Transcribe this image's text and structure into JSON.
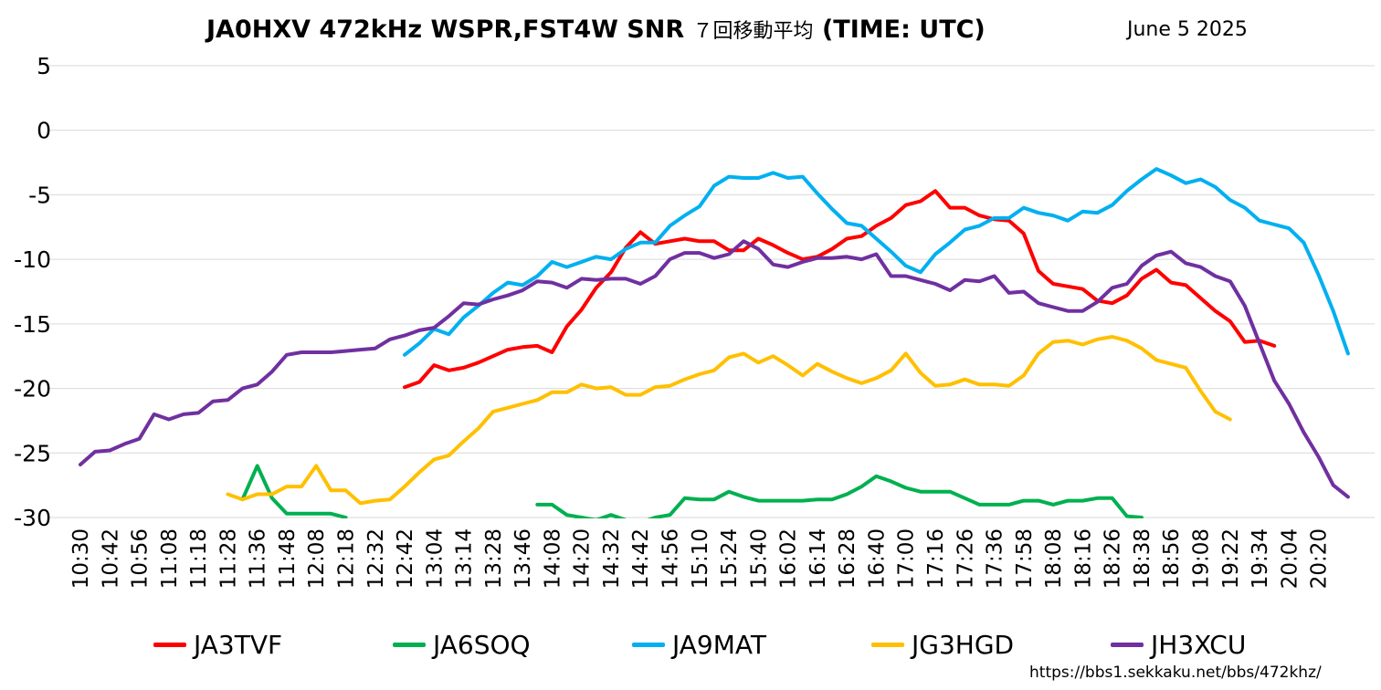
{
  "title_main": "JA0HXV 472kHz WSPR,FST4W SNR ",
  "title_avg": "７回移動平均",
  "title_tail": " (TIME: UTC)",
  "date_label": "June 5 2025",
  "source_url": "https://bbs1.sekkaku.net/bbs/472khz/",
  "chart_data": {
    "type": "line",
    "title": "JA0HXV 472kHz WSPR,FST4W SNR ７回移動平均 (TIME: UTC)",
    "ylim": [
      -30,
      5
    ],
    "yticks": [
      5,
      0,
      -5,
      -10,
      -15,
      -20,
      -25,
      -30
    ],
    "grid": true,
    "legend_position": "bottom",
    "x_tick_labels": [
      "10:30",
      "10:42",
      "10:56",
      "11:08",
      "11:18",
      "11:28",
      "11:36",
      "11:48",
      "12:08",
      "12:18",
      "12:32",
      "12:42",
      "13:04",
      "13:14",
      "13:28",
      "13:46",
      "14:08",
      "14:20",
      "14:32",
      "14:42",
      "14:56",
      "15:10",
      "15:24",
      "15:40",
      "16:02",
      "16:14",
      "16:28",
      "16:40",
      "17:00",
      "17:16",
      "17:26",
      "17:36",
      "17:58",
      "18:08",
      "18:16",
      "18:26",
      "18:38",
      "18:56",
      "19:08",
      "19:22",
      "19:34",
      "20:04",
      "20:20"
    ],
    "series": [
      {
        "name": "JA3TVF",
        "color": "#FF0000",
        "start": 22,
        "values": [
          -19.9,
          -19.5,
          -18.2,
          -18.6,
          -18.4,
          -18,
          -17.5,
          -17,
          -16.8,
          -16.7,
          -17.2,
          -15.2,
          -13.9,
          -12.2,
          -11,
          -9.1,
          -7.9,
          -8.8,
          -8.6,
          -8.4,
          -8.6,
          -8.6,
          -9.3,
          -9.3,
          -8.4,
          -8.9,
          -9.5,
          -10,
          -9.8,
          -9.2,
          -8.4,
          -8.2,
          -7.4,
          -6.8,
          -5.8,
          -5.5,
          -4.7,
          -6,
          -6,
          -6.6,
          -6.9,
          -7,
          -8,
          -10.9,
          -11.9,
          -12.1,
          -12.3,
          -13.2,
          -13.4,
          -12.8,
          -11.5,
          -10.8,
          -11.8,
          -12,
          -13,
          -14,
          -14.8,
          -16.4,
          -16.3,
          -16.7
        ]
      },
      {
        "name": "JA6SOQ",
        "color": "#00B050",
        "start": 11,
        "segments": [
          {
            "start": 11,
            "values": [
              -28.6,
              -26,
              -28.5,
              -29.7,
              -29.7,
              -29.7,
              -29.7,
              -30
            ]
          },
          {
            "start": 31,
            "values": [
              -29,
              -29,
              -29.8,
              -30,
              -30.2,
              -29.8,
              -30.2,
              -30.4,
              -30,
              -29.8,
              -28.5,
              -28.6,
              -28.6,
              -28,
              -28.4,
              -28.7,
              -28.7,
              -28.7,
              -28.7,
              -28.6,
              -28.6,
              -28.2,
              -27.6,
              -26.8,
              -27.2,
              -27.7,
              -28,
              -28,
              -28,
              -28.5,
              -29,
              -29,
              -29,
              -28.7,
              -28.7,
              -29,
              -28.7,
              -28.7,
              -28.5,
              -28.5,
              -29.9,
              -30
            ]
          }
        ]
      },
      {
        "name": "JA9MAT",
        "color": "#00B0F0",
        "start": 22,
        "values": [
          -17.4,
          -16.5,
          -15.4,
          -15.8,
          -14.5,
          -13.6,
          -12.6,
          -11.8,
          -12,
          -11.3,
          -10.2,
          -10.6,
          -10.2,
          -9.8,
          -10,
          -9.2,
          -8.7,
          -8.7,
          -7.4,
          -6.6,
          -5.9,
          -4.3,
          -3.6,
          -3.7,
          -3.7,
          -3.3,
          -3.7,
          -3.6,
          -4.9,
          -6.1,
          -7.2,
          -7.4,
          -8.4,
          -9.4,
          -10.5,
          -11,
          -9.6,
          -8.7,
          -7.7,
          -7.4,
          -6.8,
          -6.8,
          -6,
          -6.4,
          -6.6,
          -7,
          -6.3,
          -6.4,
          -5.8,
          -4.7,
          -3.8,
          -3,
          -3.5,
          -4.1,
          -3.8,
          -4.4,
          -5.4,
          -6,
          -7,
          -7.3,
          -7.6,
          -8.7,
          -11.2,
          -14,
          -17.3
        ]
      },
      {
        "name": "JG3HGD",
        "color": "#FFC000",
        "start": 10,
        "values": [
          -28.2,
          -28.6,
          -28.2,
          -28.2,
          -27.6,
          -27.6,
          -26,
          -27.9,
          -27.9,
          -28.9,
          -28.7,
          -28.6,
          -27.6,
          -26.5,
          -25.5,
          -25.2,
          -24.1,
          -23.1,
          -21.8,
          -21.5,
          -21.2,
          -20.9,
          -20.3,
          -20.3,
          -19.7,
          -20,
          -19.9,
          -20.5,
          -20.5,
          -19.9,
          -19.8,
          -19.3,
          -18.9,
          -18.6,
          -17.6,
          -17.3,
          -18,
          -17.5,
          -18.2,
          -19,
          -18.1,
          -18.7,
          -19.2,
          -19.6,
          -19.2,
          -18.6,
          -17.3,
          -18.8,
          -19.8,
          -19.7,
          -19.3,
          -19.7,
          -19.7,
          -19.8,
          -19,
          -17.3,
          -16.4,
          -16.3,
          -16.6,
          -16.2,
          -16,
          -16.3,
          -16.9,
          -17.8,
          -18.1,
          -18.4,
          -20.2,
          -21.8,
          -22.4
        ]
      },
      {
        "name": "JH3XCU",
        "color": "#7030A0",
        "start": 0,
        "values": [
          -25.9,
          -24.9,
          -24.8,
          -24.3,
          -23.9,
          -22,
          -22.4,
          -22,
          -21.9,
          -21,
          -20.9,
          -20,
          -19.7,
          -18.7,
          -17.4,
          -17.2,
          -17.2,
          -17.2,
          -17.1,
          -17,
          -16.9,
          -16.2,
          -15.9,
          -15.5,
          -15.3,
          -14.4,
          -13.4,
          -13.5,
          -13.1,
          -12.8,
          -12.4,
          -11.7,
          -11.8,
          -12.2,
          -11.5,
          -11.6,
          -11.5,
          -11.5,
          -11.9,
          -11.3,
          -10,
          -9.5,
          -9.5,
          -9.9,
          -9.6,
          -8.6,
          -9.2,
          -10.4,
          -10.6,
          -10.2,
          -9.9,
          -9.9,
          -9.8,
          -10,
          -9.6,
          -11.3,
          -11.3,
          -11.6,
          -11.9,
          -12.4,
          -11.6,
          -11.7,
          -11.3,
          -12.6,
          -12.5,
          -13.4,
          -13.7,
          -14,
          -14,
          -13.3,
          -12.2,
          -11.9,
          -10.5,
          -9.7,
          -9.4,
          -10.3,
          -10.6,
          -11.3,
          -11.7,
          -13.6,
          -16.5,
          -19.4,
          -21.2,
          -23.4,
          -25.3,
          -27.5,
          -28.4
        ]
      }
    ]
  }
}
